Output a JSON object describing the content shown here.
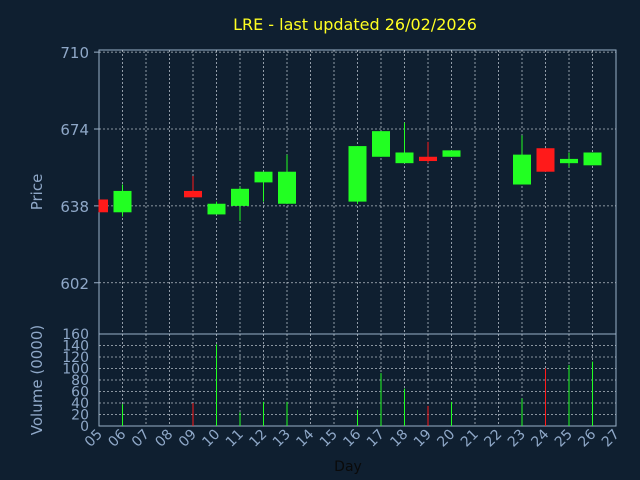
{
  "chart_data": {
    "type": "candlestick",
    "title": "LRE - last updated 26/02/2026",
    "xlabel": "Day",
    "price_panel": {
      "ylabel": "Price",
      "ylim": [
        578,
        711
      ],
      "yticks": [
        602,
        638,
        674,
        710
      ],
      "grid": true
    },
    "volume_panel": {
      "ylabel": "Volume (0000)",
      "ylim": [
        0,
        160
      ],
      "yticks": [
        0,
        20,
        40,
        60,
        80,
        100,
        120,
        140,
        160
      ],
      "grid": true
    },
    "x_range": [
      5,
      27
    ],
    "x_ticks": [
      "05",
      "06",
      "07",
      "08",
      "09",
      "10",
      "11",
      "12",
      "13",
      "14",
      "15",
      "16",
      "17",
      "18",
      "19",
      "20",
      "21",
      "22",
      "23",
      "24",
      "25",
      "26",
      "27"
    ],
    "candles": [
      {
        "day": 5,
        "open": 641,
        "close": 635,
        "high": 641,
        "low": 635,
        "volume": 0
      },
      {
        "day": 6,
        "open": 635,
        "close": 645,
        "high": 648,
        "low": 633,
        "volume": 38
      },
      {
        "day": 9,
        "open": 645,
        "close": 642,
        "high": 652,
        "low": 642,
        "volume": 40
      },
      {
        "day": 10,
        "open": 634,
        "close": 639,
        "high": 640,
        "low": 634,
        "volume": 142
      },
      {
        "day": 11,
        "open": 638,
        "close": 646,
        "high": 647,
        "low": 631,
        "volume": 24
      },
      {
        "day": 12,
        "open": 649,
        "close": 654,
        "high": 654,
        "low": 640,
        "volume": 42
      },
      {
        "day": 13,
        "open": 639,
        "close": 654,
        "high": 662,
        "low": 639,
        "volume": 42
      },
      {
        "day": 16,
        "open": 640,
        "close": 666,
        "high": 666,
        "low": 639,
        "volume": 28
      },
      {
        "day": 17,
        "open": 661,
        "close": 673,
        "high": 673,
        "low": 661,
        "volume": 92
      },
      {
        "day": 18,
        "open": 658,
        "close": 663,
        "high": 677,
        "low": 658,
        "volume": 65
      },
      {
        "day": 19,
        "open": 661,
        "close": 659,
        "high": 668,
        "low": 658,
        "volume": 35
      },
      {
        "day": 20,
        "open": 661,
        "close": 664,
        "high": 664,
        "low": 661,
        "volume": 42
      },
      {
        "day": 23,
        "open": 648,
        "close": 662,
        "high": 671,
        "low": 648,
        "volume": 48
      },
      {
        "day": 24,
        "open": 665,
        "close": 654,
        "high": 665,
        "low": 654,
        "volume": 100
      },
      {
        "day": 25,
        "open": 658,
        "close": 660,
        "high": 663,
        "low": 656,
        "volume": 106
      },
      {
        "day": 26,
        "open": 657,
        "close": 663,
        "high": 663,
        "low": 657,
        "volume": 112
      }
    ]
  },
  "colors": {
    "background": "#0f1f30",
    "panel": "#0f1f30",
    "border": "#9ab0c8",
    "grid": "#d0d8e0",
    "title": "#ffff22",
    "label": "#8fa8c8",
    "xlabel": "#0a0a0a",
    "up": "#22ff22",
    "down": "#ff1a1a"
  }
}
